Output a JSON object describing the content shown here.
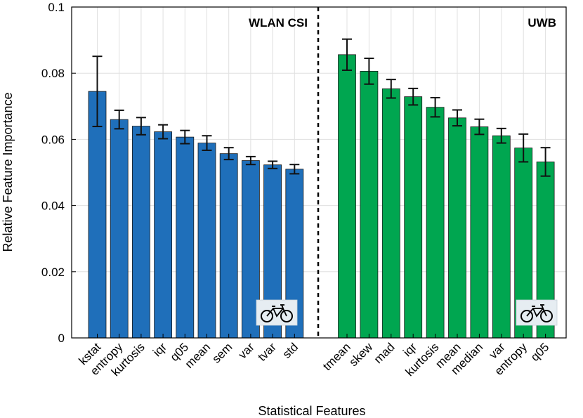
{
  "chart_data": {
    "type": "bar",
    "xlabel": "Statistical Features",
    "ylabel": "Relative Feature Importance",
    "ylim": [
      0,
      0.1
    ],
    "yticks": [
      "0",
      "0.02",
      "0.04",
      "0.06",
      "0.08",
      "0.1"
    ],
    "grid": true,
    "groups": [
      {
        "name": "WLAN CSI",
        "color": "#1f6fba",
        "icon": "bicycle-icon",
        "categories": [
          "kstat",
          "entropy",
          "kurtosis",
          "iqr",
          "q05",
          "mean",
          "sem",
          "var",
          "tvar",
          "std"
        ],
        "values": [
          0.0745,
          0.066,
          0.064,
          0.0623,
          0.0607,
          0.0589,
          0.0557,
          0.0536,
          0.0523,
          0.051
        ],
        "errors": [
          0.0106,
          0.0028,
          0.0026,
          0.0021,
          0.002,
          0.0022,
          0.0018,
          0.0012,
          0.0011,
          0.0014
        ]
      },
      {
        "name": "UWB",
        "color": "#00a650",
        "icon": "bicycle-icon",
        "categories": [
          "tmean",
          "skew",
          "mad",
          "iqr",
          "kurtosis",
          "mean",
          "median",
          "var",
          "entropy",
          "q05"
        ],
        "values": [
          0.0856,
          0.0806,
          0.0753,
          0.0729,
          0.0697,
          0.0665,
          0.0638,
          0.0611,
          0.0574,
          0.0532
        ],
        "errors": [
          0.0047,
          0.0039,
          0.0028,
          0.0025,
          0.0029,
          0.0024,
          0.0023,
          0.0022,
          0.0042,
          0.0043
        ]
      }
    ]
  }
}
